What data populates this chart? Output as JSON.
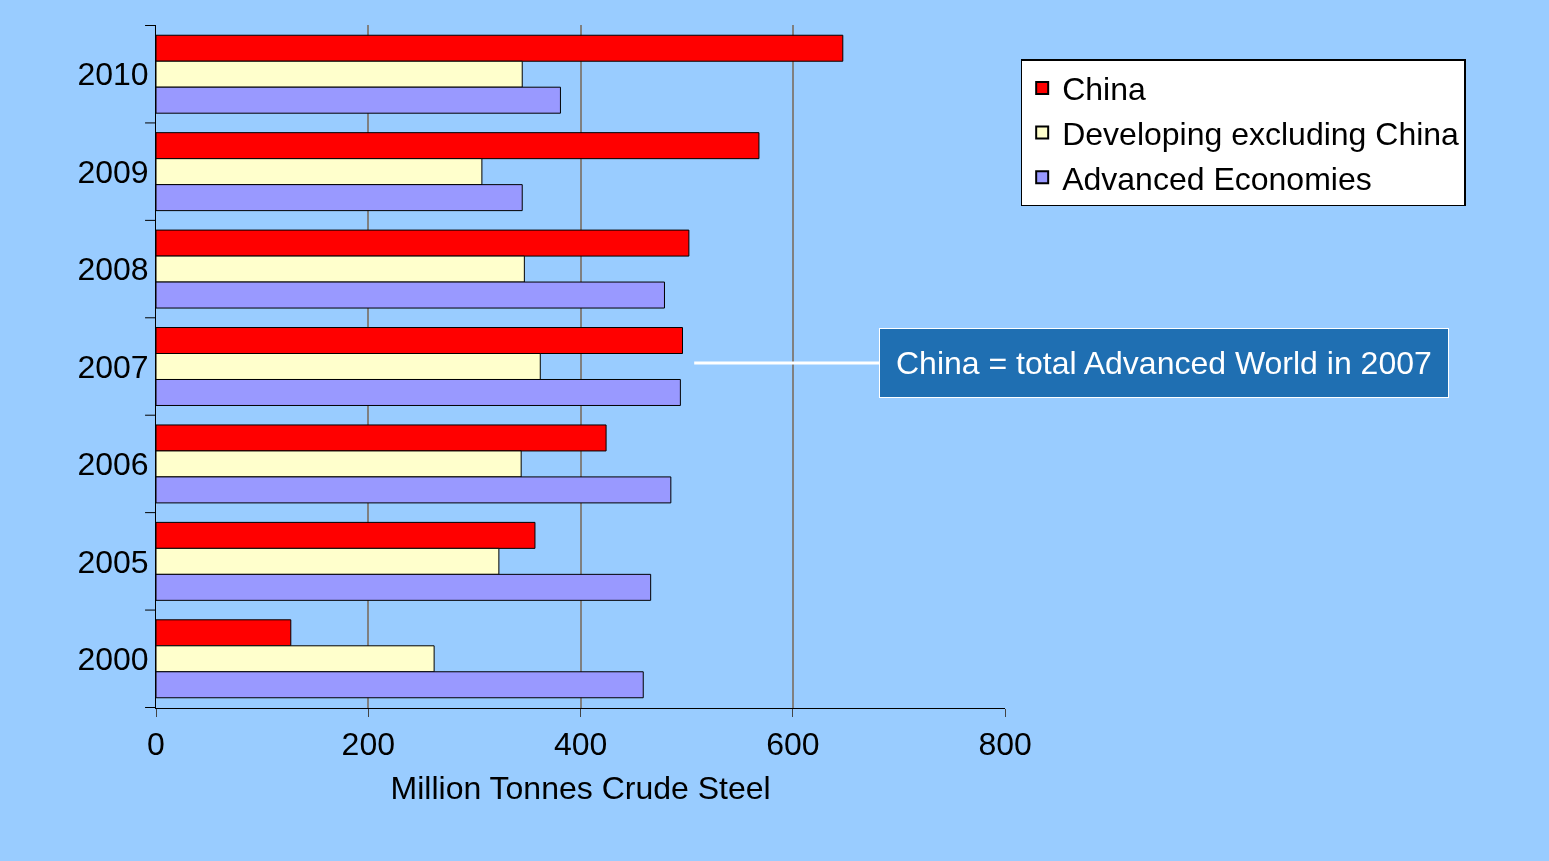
{
  "chart_data": {
    "type": "bar",
    "orientation": "horizontal",
    "xlabel": "Million Tonnes Crude Steel",
    "categories": [
      "2010",
      "2009",
      "2008",
      "2007",
      "2006",
      "2005",
      "2000"
    ],
    "series": [
      {
        "name": "China",
        "color": "#ff0000",
        "values": [
          647,
          568,
          502,
          496,
          424,
          357,
          127
        ]
      },
      {
        "name": "Developing excluding China",
        "color": "#ffffcc",
        "values": [
          345,
          307,
          347,
          362,
          344,
          323,
          262
        ]
      },
      {
        "name": "Advanced Economies",
        "color": "#9999ff",
        "values": [
          381,
          345,
          479,
          494,
          485,
          466,
          459
        ]
      }
    ],
    "xlim": [
      0,
      800
    ],
    "xticks": [
      0,
      200,
      400,
      600,
      800
    ],
    "grid": "x",
    "legend": "top right",
    "annotations": [
      "China = total Advanced World in 2007"
    ]
  }
}
